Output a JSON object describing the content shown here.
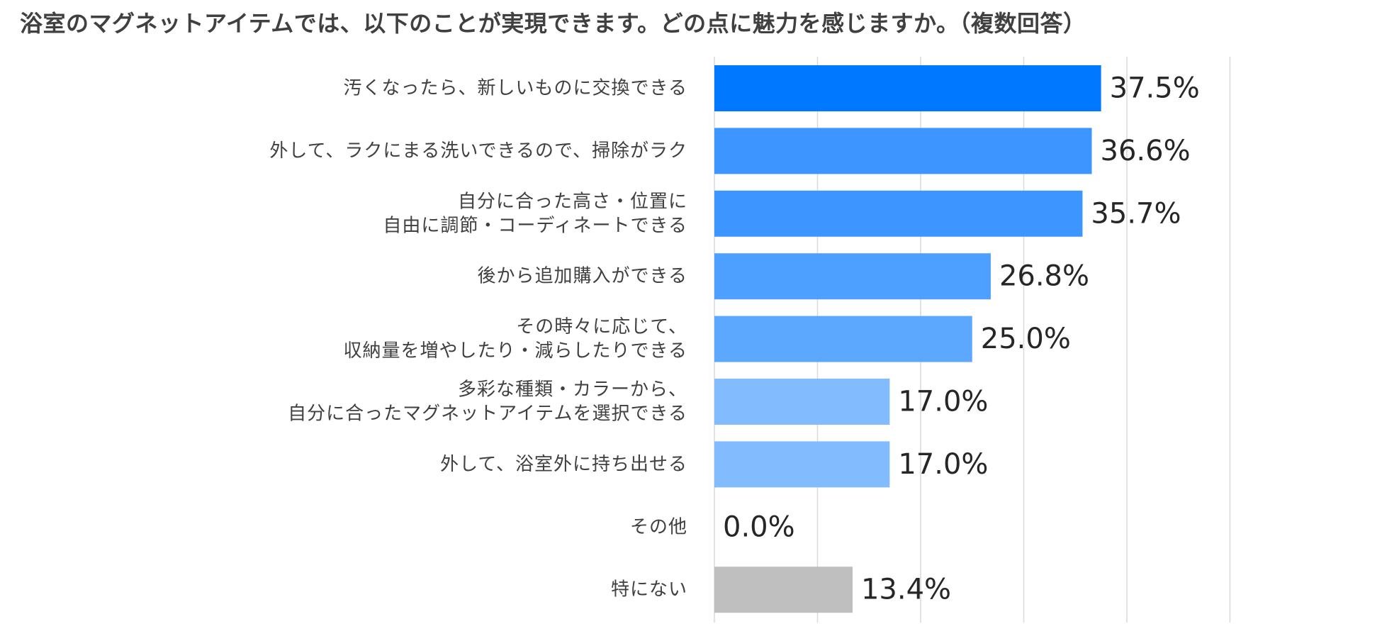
{
  "chart_data": {
    "type": "bar",
    "orientation": "horizontal",
    "title": "浴室のマグネットアイテムでは、以下のことが実現できます。どの点に魅力を感じますか。（複数回答）",
    "categories": [
      [
        "汚くなったら、新しいものに交換できる"
      ],
      [
        "外して、ラクにまる洗いできるので、掃除がラク"
      ],
      [
        "自分に合った高さ・位置に",
        "自由に調節・コーディネートできる"
      ],
      [
        "後から追加購入ができる"
      ],
      [
        "その時々に応じて、",
        "収納量を増やしたり・減らしたりできる"
      ],
      [
        "多彩な種類・カラーから、",
        "自分に合ったマグネットアイテムを選択できる"
      ],
      [
        "外して、浴室外に持ち出せる"
      ],
      [
        "その他"
      ],
      [
        "特にない"
      ]
    ],
    "values": [
      37.5,
      36.6,
      35.7,
      26.8,
      25.0,
      17.0,
      17.0,
      0.0,
      13.4
    ],
    "value_labels": [
      "37.5%",
      "36.6%",
      "35.7%",
      "26.8%",
      "25.0%",
      "17.0%",
      "17.0%",
      "0.0%",
      "13.4%"
    ],
    "bar_colors": [
      "#0078FF",
      "#3D96FF",
      "#3D96FF",
      "#4DA0FF",
      "#5CA8FF",
      "#82BCFF",
      "#82BCFF",
      "#82BCFF",
      "#BFBFBF"
    ],
    "xlim": [
      0,
      50
    ],
    "grid": true,
    "x_axis_visible": false,
    "legend": "none"
  }
}
